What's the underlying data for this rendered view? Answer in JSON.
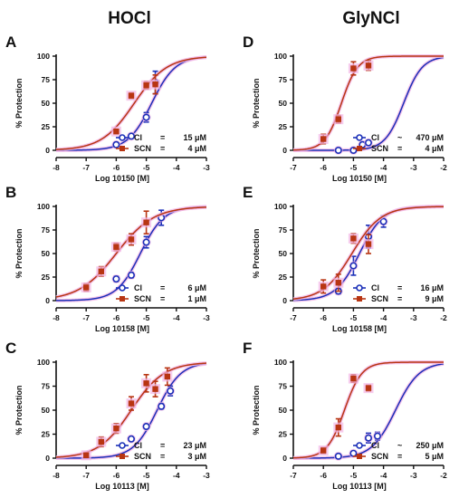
{
  "column_titles": [
    "HOCl",
    "GlyNCl"
  ],
  "colors": {
    "cl": "#1a2fb8",
    "scn": "#b83512",
    "halo": "#f2b6e6"
  },
  "chart_data": [
    {
      "panel": "A",
      "type": "line",
      "xlabel": "Log 10150 [M]",
      "ylabel": "% Protection",
      "xlim": [
        -8,
        -3
      ],
      "ylim": [
        0,
        100
      ],
      "xticks": [
        -8,
        -7,
        -6,
        -5,
        -4,
        -3
      ],
      "yticks": [
        0,
        25,
        50,
        75,
        100
      ],
      "series": [
        {
          "key": "cl",
          "name": "Cl",
          "legend": [
            "Cl",
            "=",
            "15 μM"
          ],
          "logEC50": -4.82,
          "hill": 1.1,
          "bottom": 0,
          "top": 100,
          "points": [
            {
              "x": -6,
              "y": 6,
              "err": 1
            },
            {
              "x": -5.5,
              "y": 15,
              "err": 2
            },
            {
              "x": -5,
              "y": 35,
              "err": 5
            },
            {
              "x": -4.7,
              "y": 72,
              "err": 12
            }
          ]
        },
        {
          "key": "scn",
          "name": "SCN",
          "legend": [
            "SCN",
            "=",
            "4 μM"
          ],
          "logEC50": -5.4,
          "hill": 0.8,
          "bottom": 0,
          "top": 100,
          "points": [
            {
              "x": -6,
              "y": 20,
              "err": 2
            },
            {
              "x": -5.5,
              "y": 58,
              "err": 3
            },
            {
              "x": -5,
              "y": 69,
              "err": 4
            },
            {
              "x": -4.7,
              "y": 70,
              "err": 10
            }
          ]
        }
      ]
    },
    {
      "panel": "D",
      "type": "line",
      "xlabel": "Log 10150 [M]",
      "ylabel": "% Protection",
      "xlim": [
        -7,
        -2
      ],
      "ylim": [
        0,
        100
      ],
      "xticks": [
        -7,
        -6,
        -5,
        -4,
        -3,
        -2
      ],
      "yticks": [
        0,
        25,
        50,
        75,
        100
      ],
      "series": [
        {
          "key": "cl",
          "name": "Cl",
          "legend": [
            "Cl",
            "~",
            "470 μM"
          ],
          "logEC50": -3.33,
          "hill": 1.4,
          "bottom": 0,
          "top": 100,
          "points": [
            {
              "x": -5.5,
              "y": 0,
              "err": 1
            },
            {
              "x": -5,
              "y": 0,
              "err": 1
            },
            {
              "x": -4.7,
              "y": 6,
              "err": 1
            },
            {
              "x": -4.5,
              "y": 8,
              "err": 2
            }
          ]
        },
        {
          "key": "scn",
          "name": "SCN",
          "legend": [
            "SCN",
            "=",
            "4 μM"
          ],
          "logEC50": -5.4,
          "hill": 1.6,
          "bottom": 0,
          "top": 100,
          "points": [
            {
              "x": -6,
              "y": 12,
              "err": 5
            },
            {
              "x": -5.5,
              "y": 33,
              "err": 4
            },
            {
              "x": -5,
              "y": 87,
              "err": 7
            },
            {
              "x": -4.5,
              "y": 90,
              "err": 5
            }
          ]
        }
      ]
    },
    {
      "panel": "B",
      "type": "line",
      "xlabel": "Log 10158 [M]",
      "ylabel": "% Protection",
      "xlim": [
        -8,
        -3
      ],
      "ylim": [
        0,
        100
      ],
      "xticks": [
        -8,
        -7,
        -6,
        -5,
        -4,
        -3
      ],
      "yticks": [
        0,
        25,
        50,
        75,
        100
      ],
      "series": [
        {
          "key": "cl",
          "name": "Cl",
          "legend": [
            "Cl",
            "=",
            "6 μM"
          ],
          "logEC50": -5.2,
          "hill": 1.1,
          "bottom": 0,
          "top": 100,
          "points": [
            {
              "x": -6,
              "y": 23,
              "err": 3
            },
            {
              "x": -5.5,
              "y": 27,
              "err": 3
            },
            {
              "x": -5,
              "y": 62,
              "err": 6
            },
            {
              "x": -4.5,
              "y": 88,
              "err": 8
            }
          ]
        },
        {
          "key": "scn",
          "name": "SCN",
          "legend": [
            "SCN",
            "=",
            "1 μM"
          ],
          "logEC50": -6.0,
          "hill": 0.7,
          "bottom": 0,
          "top": 100,
          "points": [
            {
              "x": -7,
              "y": 14,
              "err": 4
            },
            {
              "x": -6.5,
              "y": 31,
              "err": 5
            },
            {
              "x": -6,
              "y": 57,
              "err": 4
            },
            {
              "x": -5.5,
              "y": 65,
              "err": 6
            },
            {
              "x": -5,
              "y": 83,
              "err": 12
            }
          ]
        }
      ]
    },
    {
      "panel": "E",
      "type": "line",
      "xlabel": "Log 10158 [M]",
      "ylabel": "% Protection",
      "xlim": [
        -7,
        -2
      ],
      "ylim": [
        0,
        100
      ],
      "xticks": [
        -7,
        -6,
        -5,
        -4,
        -3,
        -2
      ],
      "yticks": [
        0,
        25,
        50,
        75,
        100
      ],
      "series": [
        {
          "key": "cl",
          "name": "Cl",
          "legend": [
            "Cl",
            "=",
            "16 μM"
          ],
          "logEC50": -4.8,
          "hill": 1.1,
          "bottom": 0,
          "top": 100,
          "points": [
            {
              "x": -5.5,
              "y": 10,
              "err": 3
            },
            {
              "x": -5,
              "y": 37,
              "err": 10
            },
            {
              "x": -4.5,
              "y": 68,
              "err": 12
            },
            {
              "x": -4,
              "y": 84,
              "err": 6
            }
          ]
        },
        {
          "key": "scn",
          "name": "SCN",
          "legend": [
            "SCN",
            "=",
            "9 μM"
          ],
          "logEC50": -5.05,
          "hill": 0.9,
          "bottom": 0,
          "top": 100,
          "points": [
            {
              "x": -6,
              "y": 15,
              "err": 7
            },
            {
              "x": -5.5,
              "y": 19,
              "err": 9
            },
            {
              "x": -5,
              "y": 66,
              "err": 5
            },
            {
              "x": -4.5,
              "y": 60,
              "err": 10
            }
          ]
        }
      ]
    },
    {
      "panel": "C",
      "type": "line",
      "xlabel": "Log 10113 [M]",
      "ylabel": "% Protection",
      "xlim": [
        -8,
        -3
      ],
      "ylim": [
        0,
        100
      ],
      "xticks": [
        -8,
        -7,
        -6,
        -5,
        -4,
        -3
      ],
      "yticks": [
        0,
        25,
        50,
        75,
        100
      ],
      "series": [
        {
          "key": "cl",
          "name": "Cl",
          "legend": [
            "Cl",
            "=",
            "23 μM"
          ],
          "logEC50": -4.64,
          "hill": 1.1,
          "bottom": 0,
          "top": 100,
          "points": [
            {
              "x": -5.5,
              "y": 20,
              "err": 2
            },
            {
              "x": -5,
              "y": 33,
              "err": 2
            },
            {
              "x": -4.5,
              "y": 54,
              "err": 3
            },
            {
              "x": -4.2,
              "y": 70,
              "err": 5
            }
          ]
        },
        {
          "key": "scn",
          "name": "SCN",
          "legend": [
            "SCN",
            "=",
            "3 μM"
          ],
          "logEC50": -5.5,
          "hill": 0.8,
          "bottom": 0,
          "top": 100,
          "points": [
            {
              "x": -7,
              "y": 3,
              "err": 2
            },
            {
              "x": -6.5,
              "y": 17,
              "err": 5
            },
            {
              "x": -6,
              "y": 31,
              "err": 5
            },
            {
              "x": -5.5,
              "y": 57,
              "err": 7
            },
            {
              "x": -5,
              "y": 78,
              "err": 9
            },
            {
              "x": -4.7,
              "y": 72,
              "err": 8
            },
            {
              "x": -4.3,
              "y": 85,
              "err": 9
            }
          ]
        }
      ]
    },
    {
      "panel": "F",
      "type": "line",
      "xlabel": "Log 10113 [M]",
      "ylabel": "% Protection",
      "xlim": [
        -7,
        -2
      ],
      "ylim": [
        0,
        100
      ],
      "xticks": [
        -7,
        -6,
        -5,
        -4,
        -3,
        -2
      ],
      "yticks": [
        0,
        25,
        50,
        75,
        100
      ],
      "series": [
        {
          "key": "cl",
          "name": "Cl",
          "legend": [
            "Cl",
            "~",
            "250 μM"
          ],
          "logEC50": -3.6,
          "hill": 1.1,
          "bottom": 0,
          "top": 100,
          "points": [
            {
              "x": -5.5,
              "y": 2,
              "err": 1
            },
            {
              "x": -5,
              "y": 5,
              "err": 1
            },
            {
              "x": -4.5,
              "y": 21,
              "err": 5
            },
            {
              "x": -4.2,
              "y": 23,
              "err": 4
            }
          ]
        },
        {
          "key": "scn",
          "name": "SCN",
          "legend": [
            "SCN",
            "=",
            "5 μM"
          ],
          "logEC50": -5.3,
          "hill": 1.5,
          "bottom": 0,
          "top": 100,
          "points": [
            {
              "x": -6,
              "y": 8,
              "err": 3
            },
            {
              "x": -5.5,
              "y": 32,
              "err": 9
            },
            {
              "x": -5,
              "y": 83,
              "err": 4
            },
            {
              "x": -4.5,
              "y": 73,
              "err": 3
            }
          ]
        }
      ]
    }
  ]
}
